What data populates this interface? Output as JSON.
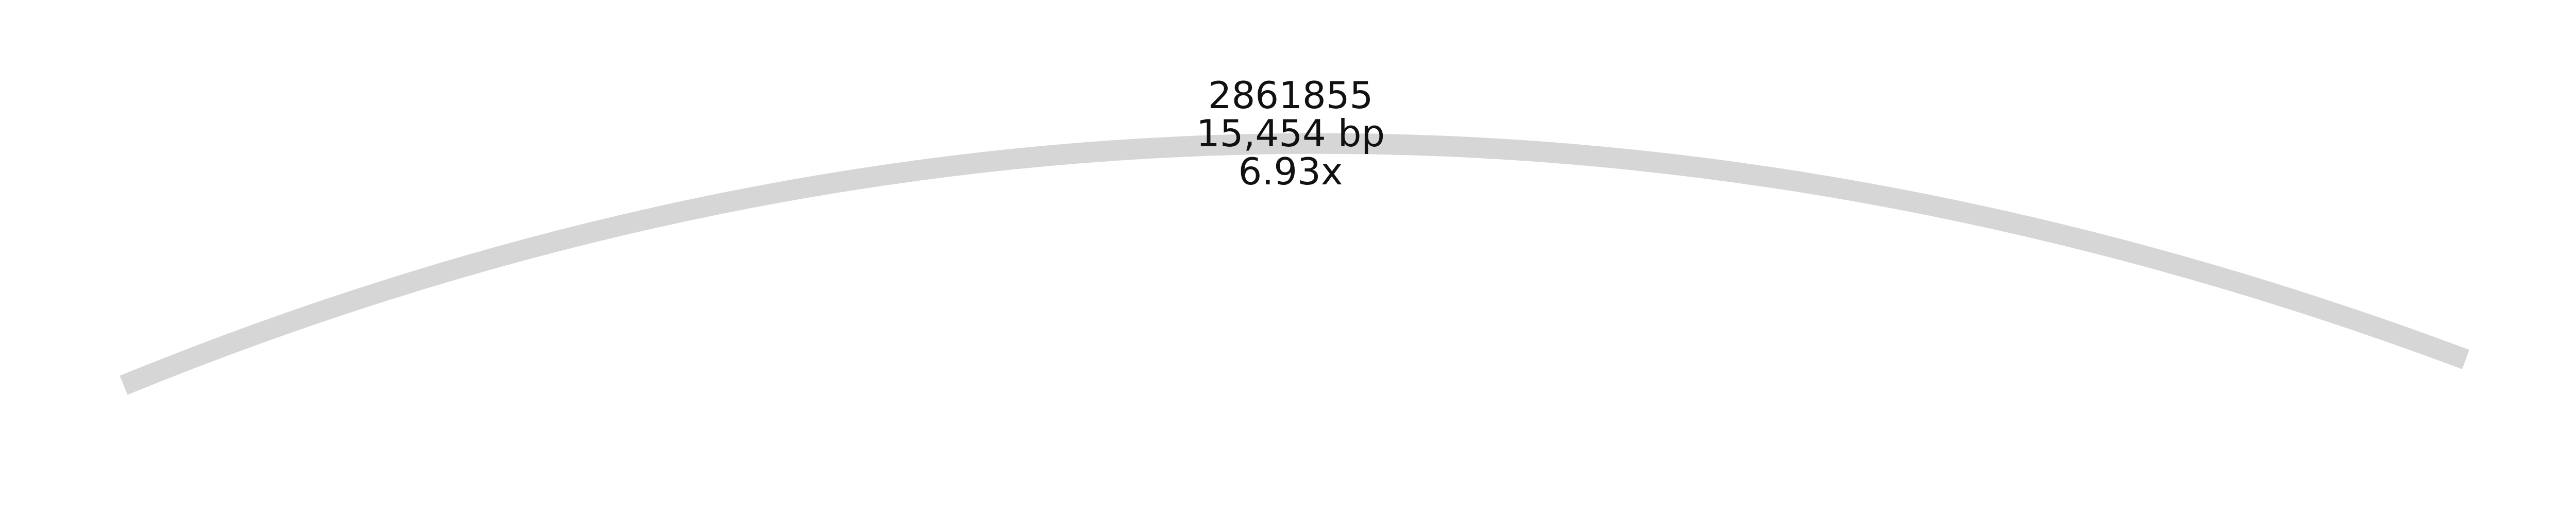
{
  "contig": {
    "name": "2861855",
    "length_label": "15,454 bp",
    "depth_label": "6.93x",
    "color": "#d6d6d6"
  },
  "background_color": "#ffffff",
  "text_color": "#111111"
}
